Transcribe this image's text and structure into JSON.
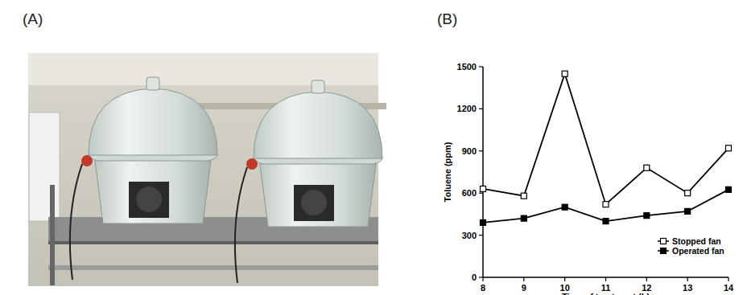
{
  "panel_labels": [
    "(A)",
    "(B)"
  ],
  "chart_data": {
    "type": "line",
    "x_label": "Time of treatment (h)",
    "y_label": "Toluene (ppm)",
    "x": [
      8,
      9,
      10,
      11,
      12,
      13,
      14
    ],
    "series": [
      {
        "name": "Stopped fan",
        "color": "#000000",
        "marker": "square-open",
        "line_style": "solid",
        "values": [
          630,
          580,
          1450,
          520,
          780,
          600,
          920
        ]
      },
      {
        "name": "Operated fan",
        "color": "#000000",
        "marker": "square",
        "line_style": "solid",
        "values": [
          390,
          420,
          500,
          400,
          440,
          470,
          625
        ]
      }
    ],
    "xlim": [
      8,
      14
    ],
    "xticks": [
      8,
      9,
      10,
      11,
      12,
      13,
      14
    ],
    "ylim": [
      0,
      1500
    ],
    "yticks": [
      0,
      300,
      600,
      900,
      1200,
      1500
    ],
    "grid": false,
    "legend": "lower right"
  }
}
